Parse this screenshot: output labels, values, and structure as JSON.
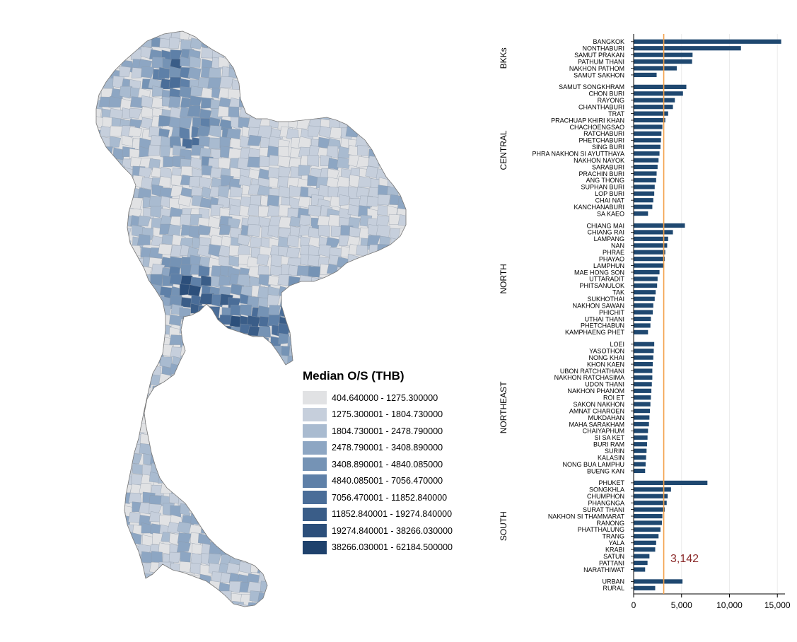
{
  "map": {
    "legend_title": "Median O/S (THB)",
    "legend": [
      {
        "label": "404.640000 - 1275.300000",
        "color": "#e1e2e4"
      },
      {
        "label": "1275.300001 - 1804.730000",
        "color": "#c6cfdc"
      },
      {
        "label": "1804.730001 - 2478.790000",
        "color": "#a9bbd0"
      },
      {
        "label": "2478.790001 - 3408.890000",
        "color": "#8da6c3"
      },
      {
        "label": "3408.890001 - 4840.085000",
        "color": "#7593b5"
      },
      {
        "label": "4840.085001 - 7056.470000",
        "color": "#5e80a8"
      },
      {
        "label": "7056.470001 - 11852.840000",
        "color": "#4a6d98"
      },
      {
        "label": "11852.840001 - 19274.840000",
        "color": "#3a5d88"
      },
      {
        "label": "19274.840001 - 38266.030000",
        "color": "#2c4f7b"
      },
      {
        "label": "38266.030001 - 62184.500000",
        "color": "#1e416c"
      }
    ]
  },
  "chart_data": {
    "type": "bar",
    "orientation": "horizontal",
    "bar_color": "#1f4870",
    "reference_line": {
      "value": 3142,
      "label": "3,142",
      "color": "#f2a049",
      "label_color": "#8b2a2a"
    },
    "xlim": [
      0,
      15500
    ],
    "xticks": [
      0,
      5000,
      10000,
      15000
    ],
    "xtick_labels": [
      "0",
      "5,000",
      "10,000",
      "15,000"
    ],
    "grid": "vertical",
    "groups": [
      {
        "name": "BKKs",
        "categories": [
          "BANGKOK",
          "NONTHABURI",
          "SAMUT PRAKAN",
          "PATHUM THANI",
          "NAKHON PATHOM",
          "SAMUT SAKHON"
        ],
        "values": [
          15400,
          11200,
          6150,
          6100,
          4500,
          2400
        ]
      },
      {
        "name": "CENTRAL",
        "categories": [
          "SAMUT SONGKHRAM",
          "CHON BURI",
          "RAYONG",
          "CHANTHABURI",
          "TRAT",
          "PRACHUAP KHIRI KHAN",
          "CHACHOENGSAO",
          "RATCHABURI",
          "PHETCHABURI",
          "SING BURI",
          "PHRA NAKHON SI AYUTTHAYA",
          "NAKHON NAYOK",
          "SARABURI",
          "PRACHIN BURI",
          "ANG THONG",
          "SUPHAN BURI",
          "LOP BURI",
          "CHAI NAT",
          "KANCHANABURI",
          "SA KAEO"
        ],
        "values": [
          5500,
          5150,
          4300,
          4100,
          3600,
          3300,
          3000,
          2900,
          2850,
          2800,
          2700,
          2600,
          2500,
          2400,
          2350,
          2200,
          2150,
          2050,
          1950,
          1500
        ]
      },
      {
        "name": "NORTH",
        "categories": [
          "CHIANG MAI",
          "CHIANG RAI",
          "LAMPANG",
          "NAN",
          "PHRAE",
          "PHAYAO",
          "LAMPHUN",
          "MAE HONG SON",
          "UTTARADIT",
          "PHITSANULOK",
          "TAK",
          "SUKHOTHAI",
          "NAKHON SAWAN",
          "PHICHIT",
          "UTHAI THANI",
          "PHETCHABUN",
          "KAMPHAENG PHET"
        ],
        "values": [
          5350,
          4100,
          3600,
          3500,
          3300,
          3250,
          3150,
          2700,
          2500,
          2450,
          2300,
          2200,
          2050,
          2000,
          1800,
          1750,
          1500
        ]
      },
      {
        "name": "NORTHEAST",
        "categories": [
          "LOEI",
          "YASOTHON",
          "NONG KHAI",
          "KHON KAEN",
          "UBON RATCHATHANI",
          "NAKHON RATCHASIMA",
          "UDON THANI",
          "NAKHON PHANOM",
          "ROI ET",
          "SAKON NAKHON",
          "AMNAT CHAROEN",
          "MUKDAHAN",
          "MAHA SARAKHAM",
          "CHAIYAPHUM",
          "SI SA KET",
          "BURI RAM",
          "SURIN",
          "KALASIN",
          "NONG BUA LAMPHU",
          "BUENG KAN"
        ],
        "values": [
          2150,
          2100,
          2050,
          2000,
          1950,
          1950,
          1900,
          1850,
          1800,
          1750,
          1700,
          1650,
          1600,
          1500,
          1450,
          1400,
          1350,
          1300,
          1250,
          1200
        ]
      },
      {
        "name": "SOUTH",
        "categories": [
          "PHUKET",
          "SONGKHLA",
          "CHUMPHON",
          "PHANGNGA",
          "SURAT THANI",
          "NAKHON SI THAMMARAT",
          "RANONG",
          "PHATTHALUNG",
          "TRANG",
          "YALA",
          "KRABI",
          "SATUN",
          "PATTANI",
          "NARATHIWAT"
        ],
        "values": [
          7700,
          3900,
          3550,
          3450,
          3250,
          3000,
          2950,
          2800,
          2600,
          2350,
          2250,
          1650,
          1450,
          1200
        ]
      },
      {
        "name": "",
        "categories": [
          "URBAN",
          "RURAL"
        ],
        "values": [
          5100,
          2250
        ]
      }
    ]
  }
}
